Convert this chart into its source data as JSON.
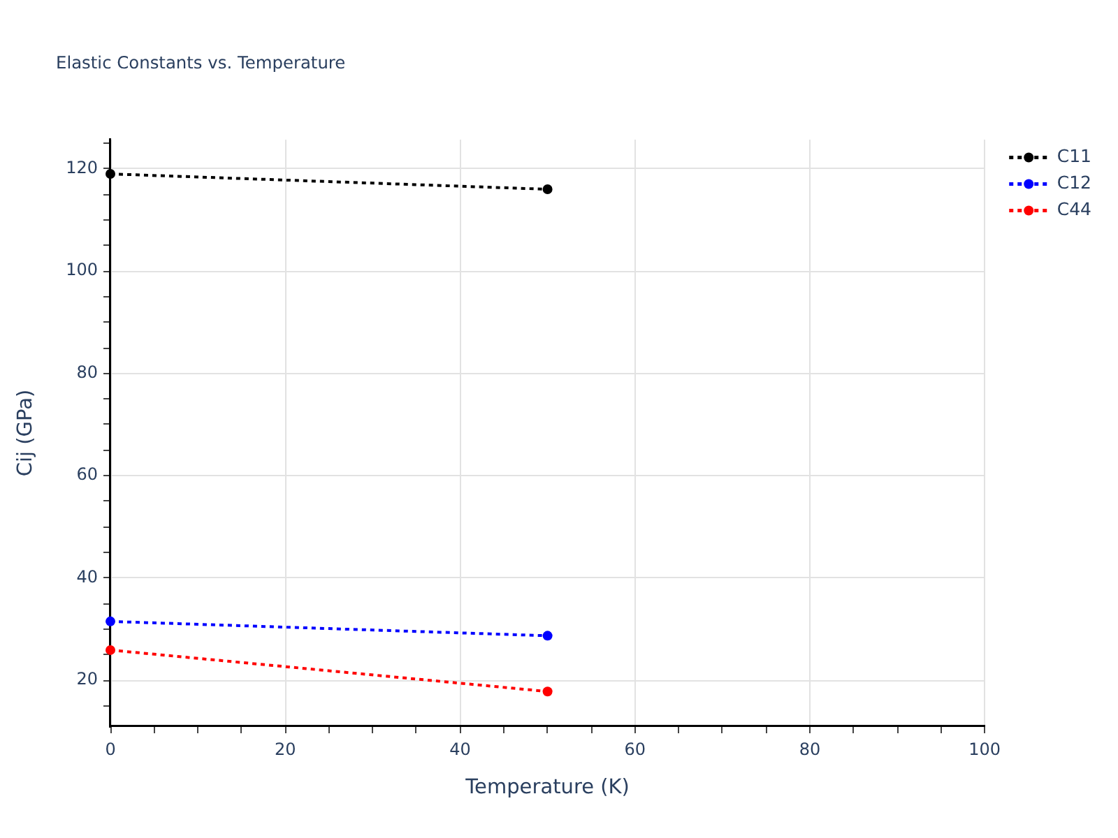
{
  "chart_data": {
    "type": "line",
    "title": "Elastic Constants vs. Temperature",
    "xlabel": "Temperature (K)",
    "ylabel": "Cij (GPa)",
    "x": [
      0,
      50
    ],
    "series": [
      {
        "name": "C11",
        "color": "#000000",
        "values": [
          119,
          116
        ]
      },
      {
        "name": "C12",
        "color": "#0000ff",
        "values": [
          31.5,
          28.7
        ]
      },
      {
        "name": "C44",
        "color": "#ff0000",
        "values": [
          25.9,
          17.8
        ]
      }
    ],
    "xlim": [
      0,
      100
    ],
    "ylim": [
      11,
      125.7
    ],
    "xticks": [
      0,
      {
        "value": 5,
        "label": null
      },
      {
        "value": 10,
        "label": null
      },
      {
        "value": 15,
        "label": null
      },
      20,
      {
        "value": 25,
        "label": null
      },
      {
        "value": 30,
        "label": null
      },
      {
        "value": 35,
        "label": null
      },
      40,
      {
        "value": 45,
        "label": null
      },
      {
        "value": 50,
        "label": null
      },
      {
        "value": 55,
        "label": null
      },
      60,
      {
        "value": 65,
        "label": null
      },
      {
        "value": 70,
        "label": null
      },
      {
        "value": 75,
        "label": null
      },
      80,
      {
        "value": 85,
        "label": null
      },
      {
        "value": 90,
        "label": null
      },
      {
        "value": 95,
        "label": null
      },
      100
    ],
    "yticks": [
      {
        "value": 15,
        "label": null
      },
      20,
      {
        "value": 25,
        "label": null
      },
      {
        "value": 30,
        "label": null
      },
      {
        "value": 35,
        "label": null
      },
      40,
      {
        "value": 45,
        "label": null
      },
      {
        "value": 50,
        "label": null
      },
      {
        "value": 55,
        "label": null
      },
      60,
      {
        "value": 65,
        "label": null
      },
      {
        "value": 70,
        "label": null
      },
      {
        "value": 75,
        "label": null
      },
      80,
      {
        "value": 85,
        "label": null
      },
      {
        "value": 90,
        "label": null
      },
      {
        "value": 95,
        "label": null
      },
      100,
      {
        "value": 105,
        "label": null
      },
      {
        "value": 110,
        "label": null
      },
      {
        "value": 115,
        "label": null
      },
      120,
      {
        "value": 125,
        "label": null
      }
    ],
    "grid": true,
    "legend": "top right",
    "marker": "circle",
    "line_style": "dotted"
  }
}
